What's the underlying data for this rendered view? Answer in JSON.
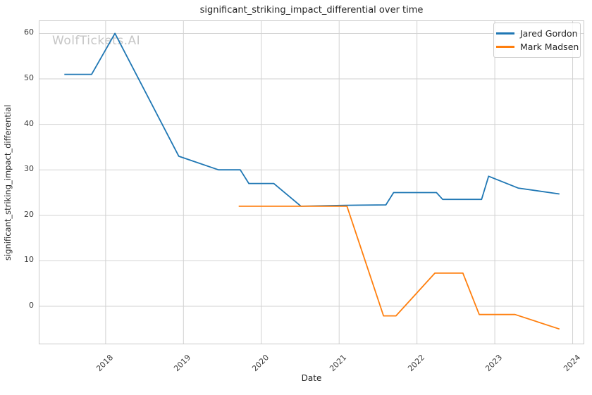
{
  "watermark": "WolfTickets.AI",
  "chart_data": {
    "type": "line",
    "title": "significant_striking_impact_differential over time",
    "xlabel": "Date",
    "ylabel": "significant_striking_impact_differential",
    "grid": true,
    "legend_position": "upper right",
    "x_axis": {
      "min": 2017.15,
      "max": 2024.14,
      "ticks": [
        2018,
        2019,
        2020,
        2021,
        2022,
        2023,
        2024
      ]
    },
    "y_axis": {
      "min": -8.2,
      "max": 62.7,
      "ticks": [
        0,
        10,
        20,
        30,
        40,
        50,
        60
      ]
    },
    "series": [
      {
        "name": "Jared Gordon",
        "color": "#1f77b4",
        "points": [
          [
            2017.47,
            51
          ],
          [
            2017.82,
            51
          ],
          [
            2018.12,
            60
          ],
          [
            2018.94,
            33
          ],
          [
            2019.45,
            30
          ],
          [
            2019.73,
            30
          ],
          [
            2019.84,
            27
          ],
          [
            2020.16,
            27
          ],
          [
            2020.51,
            22
          ],
          [
            2021.08,
            22.2
          ],
          [
            2021.6,
            22.3
          ],
          [
            2021.7,
            25
          ],
          [
            2022.25,
            25
          ],
          [
            2022.33,
            23.5
          ],
          [
            2022.83,
            23.5
          ],
          [
            2022.92,
            28.6
          ],
          [
            2023.3,
            26
          ],
          [
            2023.83,
            24.7
          ]
        ]
      },
      {
        "name": "Mark Madsen",
        "color": "#ff7f0e",
        "points": [
          [
            2019.71,
            22
          ],
          [
            2021.1,
            22
          ],
          [
            2021.57,
            -2.1
          ],
          [
            2021.73,
            -2.1
          ],
          [
            2022.23,
            7.3
          ],
          [
            2022.59,
            7.3
          ],
          [
            2022.8,
            -1.8
          ],
          [
            2023.26,
            -1.8
          ],
          [
            2023.83,
            -5
          ]
        ]
      }
    ]
  },
  "legend": {
    "items": [
      {
        "label": "Jared Gordon",
        "color": "#1f77b4"
      },
      {
        "label": "Mark Madsen",
        "color": "#ff7f0e"
      }
    ]
  },
  "style": {
    "grid_color": "#d2d2d2",
    "spine_color": "#c9c9c9",
    "text_color": "#262626",
    "watermark_color": "#c6c6c6"
  }
}
